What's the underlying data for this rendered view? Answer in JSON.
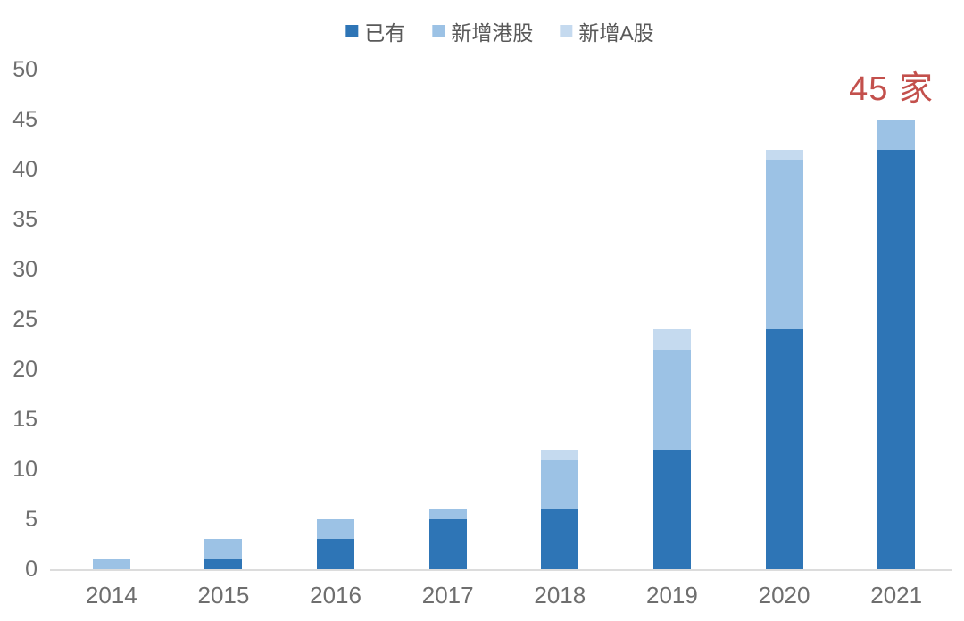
{
  "chart_data": {
    "type": "bar",
    "stacked": true,
    "categories": [
      "2014",
      "2015",
      "2016",
      "2017",
      "2018",
      "2019",
      "2020",
      "2021"
    ],
    "series": [
      {
        "name": "已有",
        "color": "#2E75B6",
        "values": [
          0,
          1,
          3,
          5,
          6,
          12,
          24,
          42
        ]
      },
      {
        "name": "新增港股",
        "color": "#9CC2E5",
        "values": [
          1,
          2,
          2,
          1,
          5,
          10,
          17,
          3
        ]
      },
      {
        "name": "新增A股",
        "color": "#C5DAEF",
        "values": [
          0,
          0,
          0,
          0,
          1,
          2,
          1,
          0
        ]
      }
    ],
    "totals": [
      1,
      3,
      5,
      6,
      12,
      24,
      42,
      45
    ],
    "title": "",
    "xlabel": "",
    "ylabel": "",
    "ylim": [
      0,
      50
    ],
    "yticks": [
      0,
      5,
      10,
      15,
      20,
      25,
      30,
      35,
      40,
      45,
      50
    ],
    "grid": false,
    "legend_position": "top",
    "annotation": {
      "text": "45 家",
      "color": "#C3504C",
      "target_category": "2021"
    }
  },
  "colors": {
    "axis_text": "#6e6e6e",
    "legend_text": "#595959",
    "baseline": "#DCDCDC",
    "annotation": "#C3504C",
    "background": "#ffffff"
  }
}
